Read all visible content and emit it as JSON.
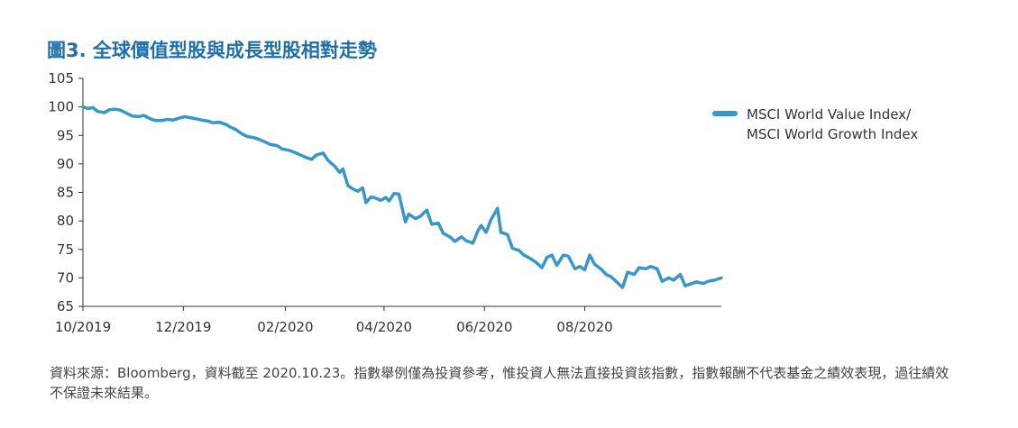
{
  "title": "圖3. 全球價值型股與成長型股相對走勢",
  "legend_label": "MSCI World Value Index/\nMSCI World Growth Index",
  "source": "資料來源：Bloomberg，資料截至 2020.10.23。指數舉例僅為投資參考，惟投資人無法直接投資該指數，指數報酬不代表基金之績效表現，過往績效不保證未來結果。",
  "colors": {
    "line": "#3a96c6",
    "title": "#1f6fa8",
    "axis": "#333333"
  },
  "chart_data": {
    "type": "line",
    "ylim": [
      65,
      105
    ],
    "yticks": [
      "105",
      "100",
      "95",
      "90",
      "85",
      "80",
      "75",
      "70",
      "65"
    ],
    "xticks": [
      "10/2019",
      "12/2019",
      "02/2020",
      "04/2020",
      "06/2020",
      "08/2020"
    ],
    "x_range": [
      "2019-10-01",
      "2020-10-23"
    ],
    "series": [
      {
        "name": "MSCI World Value Index/ MSCI World Growth Index",
        "points": [
          [
            "2019-10-01",
            100.0
          ],
          [
            "2019-10-04",
            99.7
          ],
          [
            "2019-10-07",
            99.9
          ],
          [
            "2019-10-10",
            99.2
          ],
          [
            "2019-10-14",
            99.0
          ],
          [
            "2019-10-17",
            99.5
          ],
          [
            "2019-10-21",
            99.6
          ],
          [
            "2019-10-24",
            99.4
          ],
          [
            "2019-10-28",
            98.8
          ],
          [
            "2019-10-31",
            98.4
          ],
          [
            "2019-11-04",
            98.3
          ],
          [
            "2019-11-07",
            98.5
          ],
          [
            "2019-11-11",
            97.9
          ],
          [
            "2019-11-14",
            97.6
          ],
          [
            "2019-11-18",
            97.6
          ],
          [
            "2019-11-21",
            97.8
          ],
          [
            "2019-11-25",
            97.7
          ],
          [
            "2019-11-28",
            98.0
          ],
          [
            "2019-12-02",
            98.3
          ],
          [
            "2019-12-05",
            98.1
          ],
          [
            "2019-12-09",
            97.9
          ],
          [
            "2019-12-12",
            97.7
          ],
          [
            "2019-12-16",
            97.5
          ],
          [
            "2019-12-19",
            97.2
          ],
          [
            "2019-12-23",
            97.3
          ],
          [
            "2019-12-27",
            96.9
          ],
          [
            "2019-12-30",
            96.4
          ],
          [
            "2020-01-02",
            96.0
          ],
          [
            "2020-01-06",
            95.2
          ],
          [
            "2020-01-09",
            94.8
          ],
          [
            "2020-01-13",
            94.6
          ],
          [
            "2020-01-16",
            94.3
          ],
          [
            "2020-01-20",
            93.8
          ],
          [
            "2020-01-23",
            93.4
          ],
          [
            "2020-01-27",
            93.2
          ],
          [
            "2020-01-30",
            92.6
          ],
          [
            "2020-02-03",
            92.4
          ],
          [
            "2020-02-06",
            92.1
          ],
          [
            "2020-02-10",
            91.6
          ],
          [
            "2020-02-13",
            91.2
          ],
          [
            "2020-02-17",
            90.8
          ],
          [
            "2020-02-20",
            91.6
          ],
          [
            "2020-02-24",
            91.9
          ],
          [
            "2020-02-27",
            90.6
          ],
          [
            "2020-03-02",
            89.6
          ],
          [
            "2020-03-05",
            88.5
          ],
          [
            "2020-03-07",
            89.1
          ],
          [
            "2020-03-10",
            86.2
          ],
          [
            "2020-03-13",
            85.6
          ],
          [
            "2020-03-16",
            85.2
          ],
          [
            "2020-03-19",
            85.8
          ],
          [
            "2020-03-21",
            83.2
          ],
          [
            "2020-03-24",
            84.2
          ],
          [
            "2020-03-26",
            84.1
          ],
          [
            "2020-03-30",
            83.6
          ],
          [
            "2020-04-02",
            84.1
          ],
          [
            "2020-04-04",
            83.5
          ],
          [
            "2020-04-07",
            84.8
          ],
          [
            "2020-04-10",
            84.7
          ],
          [
            "2020-04-14",
            79.8
          ],
          [
            "2020-04-16",
            81.2
          ],
          [
            "2020-04-20",
            80.4
          ],
          [
            "2020-04-23",
            80.8
          ],
          [
            "2020-04-27",
            81.9
          ],
          [
            "2020-04-30",
            79.4
          ],
          [
            "2020-05-04",
            79.6
          ],
          [
            "2020-05-07",
            77.8
          ],
          [
            "2020-05-11",
            77.2
          ],
          [
            "2020-05-14",
            76.4
          ],
          [
            "2020-05-18",
            77.2
          ],
          [
            "2020-05-21",
            76.5
          ],
          [
            "2020-05-25",
            76.1
          ],
          [
            "2020-05-28",
            78.2
          ],
          [
            "2020-05-30",
            79.2
          ],
          [
            "2020-06-02",
            78.0
          ],
          [
            "2020-06-05",
            80.2
          ],
          [
            "2020-06-09",
            82.2
          ],
          [
            "2020-06-11",
            78.0
          ],
          [
            "2020-06-15",
            77.6
          ],
          [
            "2020-06-18",
            75.2
          ],
          [
            "2020-06-22",
            74.8
          ],
          [
            "2020-06-25",
            74.0
          ],
          [
            "2020-06-29",
            73.4
          ],
          [
            "2020-07-02",
            72.8
          ],
          [
            "2020-07-06",
            71.8
          ],
          [
            "2020-07-09",
            73.6
          ],
          [
            "2020-07-12",
            74.0
          ],
          [
            "2020-07-15",
            72.2
          ],
          [
            "2020-07-19",
            74.0
          ],
          [
            "2020-07-22",
            73.8
          ],
          [
            "2020-07-26",
            71.6
          ],
          [
            "2020-07-29",
            72.0
          ],
          [
            "2020-08-01",
            71.4
          ],
          [
            "2020-08-04",
            74.0
          ],
          [
            "2020-08-07",
            72.4
          ],
          [
            "2020-08-11",
            71.5
          ],
          [
            "2020-08-14",
            70.6
          ],
          [
            "2020-08-17",
            70.2
          ],
          [
            "2020-08-20",
            69.4
          ],
          [
            "2020-08-24",
            68.3
          ],
          [
            "2020-08-27",
            71.0
          ],
          [
            "2020-08-31",
            70.6
          ],
          [
            "2020-09-03",
            71.8
          ],
          [
            "2020-09-07",
            71.6
          ],
          [
            "2020-09-10",
            72.0
          ],
          [
            "2020-09-14",
            71.6
          ],
          [
            "2020-09-17",
            69.4
          ],
          [
            "2020-09-21",
            70.0
          ],
          [
            "2020-09-24",
            69.6
          ],
          [
            "2020-09-28",
            70.6
          ],
          [
            "2020-10-01",
            68.6
          ],
          [
            "2020-10-05",
            69.0
          ],
          [
            "2020-10-08",
            69.3
          ],
          [
            "2020-10-12",
            69.0
          ],
          [
            "2020-10-15",
            69.4
          ],
          [
            "2020-10-19",
            69.6
          ],
          [
            "2020-10-23",
            70.0
          ]
        ]
      }
    ]
  }
}
